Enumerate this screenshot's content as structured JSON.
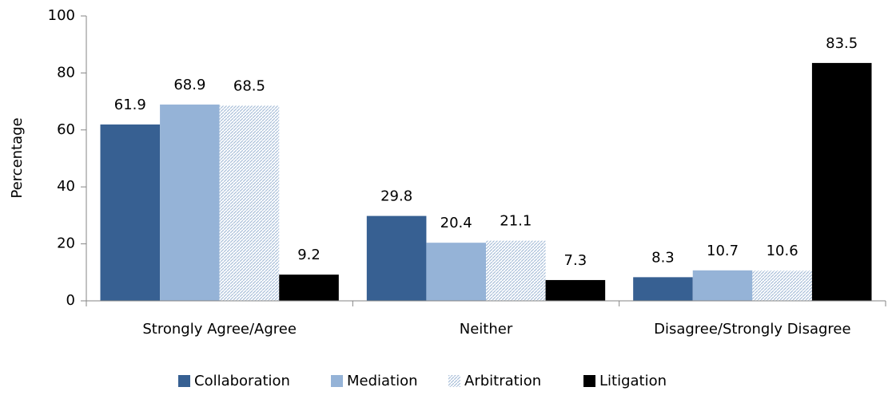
{
  "chart_data": {
    "type": "bar",
    "y_label": "Percentage",
    "categories": [
      "Strongly Agree/Agree",
      "Neither",
      "Disagree/Strongly Disagree"
    ],
    "series": [
      {
        "name": "Collaboration",
        "color": "#376092",
        "values": [
          61.9,
          29.8,
          8.3
        ]
      },
      {
        "name": "Mediation",
        "color": "#95b3d7",
        "values": [
          68.9,
          20.4,
          10.7
        ]
      },
      {
        "name": "Arbitration",
        "color": "#c6d5e8",
        "pattern": "hatch",
        "values": [
          68.5,
          21.1,
          10.6
        ]
      },
      {
        "name": "Litigation",
        "color": "#000000",
        "values": [
          9.2,
          7.3,
          83.5
        ]
      }
    ],
    "ylim": [
      0,
      100
    ],
    "yticks": [
      0,
      20,
      40,
      60,
      80,
      100
    ],
    "legend": "bottom"
  }
}
